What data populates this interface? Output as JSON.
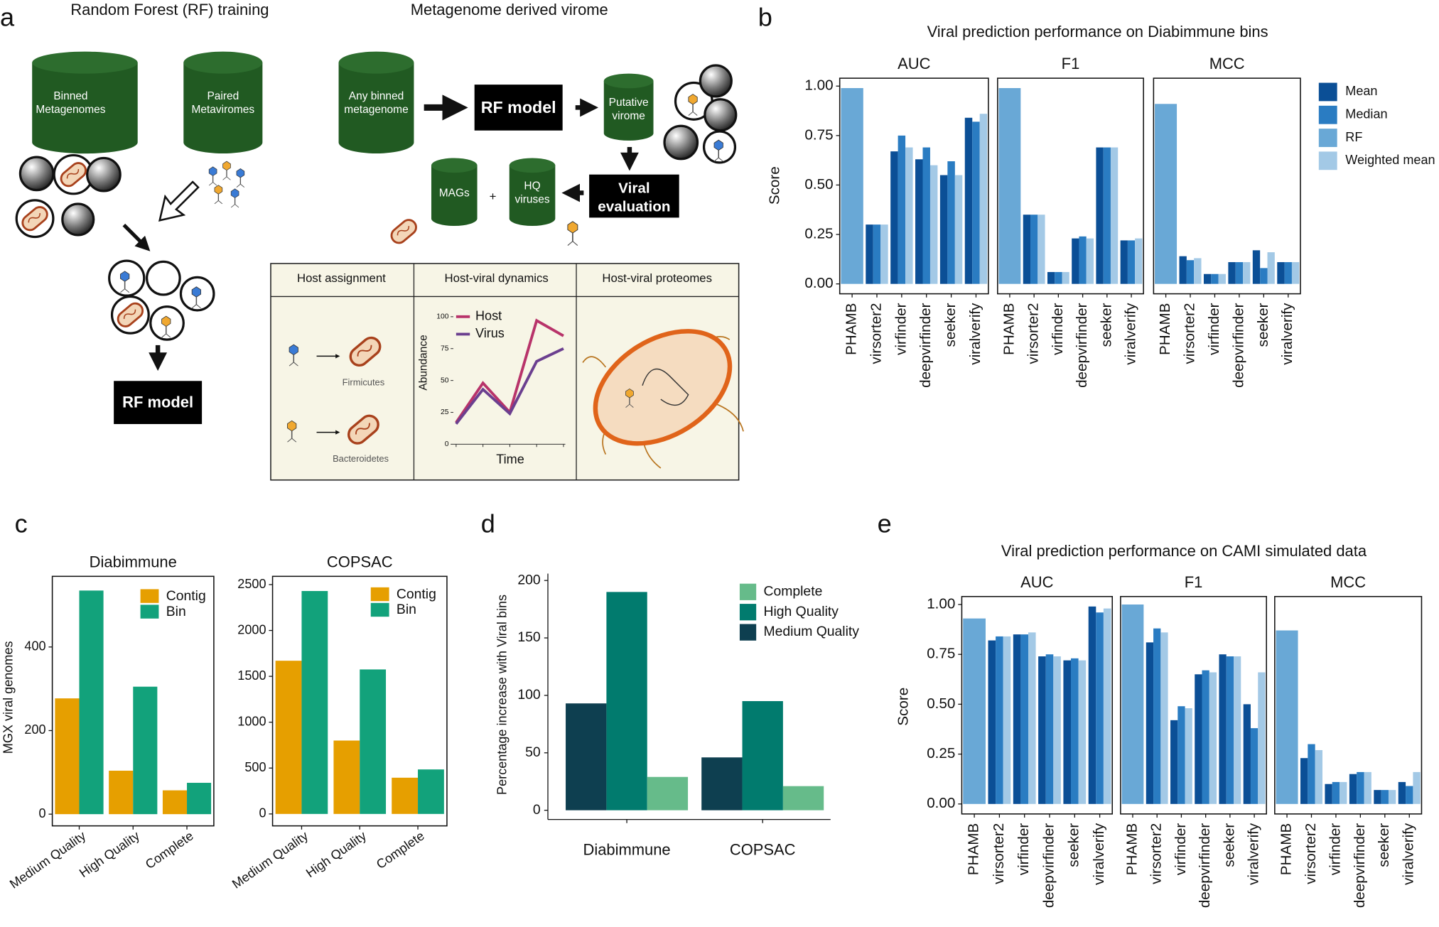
{
  "panel_labels": [
    "a",
    "b",
    "c",
    "d",
    "e"
  ],
  "diagram": {
    "training_title": "Random Forest (RF) training",
    "virome_title": "Metagenome derived virome",
    "binned_metagenomes": [
      "Binned",
      "Metagenomes"
    ],
    "paired_metaviromes": [
      "Paired",
      "Metaviromes"
    ],
    "any_binned": [
      "Any binned",
      "metagenome"
    ],
    "rf_model_top": "RF model",
    "rf_model_bottom": "RF model",
    "putative_virome": [
      "Putative",
      "virome"
    ],
    "mags": "MAGs",
    "plus": "+",
    "hq_viruses": [
      "HQ",
      "viruses"
    ],
    "viral_evaluation": [
      "Viral",
      "evaluation"
    ],
    "table_headers": [
      "Host assignment",
      "Host-viral dynamics",
      "Host-viral proteomes"
    ],
    "hosts": [
      "Firmicutes",
      "Bacteroidetes"
    ]
  },
  "chart_data": [
    {
      "type": "facet_bar",
      "title": "Viral prediction performance on Diabimmune bins",
      "ylabel": "Score",
      "categories": [
        "PHAMB",
        "virsorter2",
        "virfinder",
        "deepvirfinder",
        "seeker",
        "viralverify"
      ],
      "series": [
        {
          "name": "Mean",
          "color": "#0b4f96"
        },
        {
          "name": "Median",
          "color": "#2a7cc2"
        },
        {
          "name": "RF",
          "color": "#69a8d6"
        },
        {
          "name": "Weighted mean",
          "color": "#a3c9e6"
        }
      ],
      "legend": "right",
      "ylim": [
        -0.05,
        1.04
      ],
      "yticks": [
        {
          "value": 0,
          "label": "0.00"
        },
        {
          "value": 0.25,
          "label": "0.25"
        },
        {
          "value": 0.5,
          "label": "0.50"
        },
        {
          "value": 0.75,
          "label": "0.75"
        },
        {
          "value": 1,
          "label": "1.00"
        }
      ],
      "facets": [
        {
          "title": "AUC",
          "values": [
            [
              null,
              0.3,
              0.67,
              0.63,
              0.55,
              0.84
            ],
            [
              null,
              0.3,
              0.75,
              0.69,
              0.62,
              0.82
            ],
            [
              0.99,
              null,
              null,
              null,
              null,
              null
            ],
            [
              null,
              0.3,
              0.69,
              0.6,
              0.55,
              0.86
            ]
          ]
        },
        {
          "title": "F1",
          "values": [
            [
              null,
              0.35,
              0.06,
              0.23,
              0.69,
              0.22
            ],
            [
              null,
              0.35,
              0.06,
              0.24,
              0.69,
              0.22
            ],
            [
              0.99,
              null,
              null,
              null,
              null,
              null
            ],
            [
              null,
              0.35,
              0.06,
              0.23,
              0.69,
              0.23
            ]
          ]
        },
        {
          "title": "MCC",
          "values": [
            [
              null,
              0.14,
              0.05,
              0.11,
              0.17,
              0.11
            ],
            [
              null,
              0.12,
              0.05,
              0.11,
              0.08,
              0.11
            ],
            [
              0.91,
              null,
              null,
              null,
              null,
              null
            ],
            [
              null,
              0.13,
              0.05,
              0.11,
              0.16,
              0.11
            ]
          ]
        }
      ]
    },
    {
      "type": "facet_bar",
      "ylabel": "MGX viral genomes",
      "categories": [
        "Medium Quality",
        "High Quality",
        "Complete"
      ],
      "series": [
        {
          "name": "Contig",
          "color": "#e69f00"
        },
        {
          "name": "Bin",
          "color": "#12a27b"
        }
      ],
      "legend": "inside",
      "facets": [
        {
          "title": "Diabimmune",
          "ylim": [
            -28,
            569
          ],
          "yticks": [
            0,
            200,
            400
          ],
          "values": [
            [
              277,
              104,
              57
            ],
            [
              535,
              305,
              75
            ]
          ]
        },
        {
          "title": "COPSAC",
          "ylim": [
            -130,
            2590
          ],
          "yticks": [
            0,
            500,
            1000,
            1500,
            2000,
            2500
          ],
          "values": [
            [
              1670,
              800,
              395
            ],
            [
              2430,
              1575,
              485
            ]
          ]
        }
      ]
    },
    {
      "type": "bar",
      "ylabel": "Percentage increase with Viral bins",
      "categories": [
        "Diabimmune",
        "COPSAC"
      ],
      "series": [
        {
          "name": "Medium Quality",
          "color": "#0e3f50",
          "values": [
            93,
            46
          ]
        },
        {
          "name": "High Quality",
          "color": "#017b6e",
          "values": [
            190,
            95
          ]
        },
        {
          "name": "Complete",
          "color": "#66bb8a",
          "values": [
            29,
            21
          ]
        }
      ],
      "ylim": [
        -8,
        206
      ],
      "yticks": [
        0,
        50,
        100,
        150,
        200
      ]
    },
    {
      "type": "facet_bar",
      "title": "Viral prediction performance on CAMI simulated data",
      "ylabel": "Score",
      "categories": [
        "PHAMB",
        "virsorter2",
        "virfinder",
        "deepvirfinder",
        "seeker",
        "viralverify"
      ],
      "series": [
        {
          "color": "#0b4f96"
        },
        {
          "color": "#2a7cc2"
        },
        {
          "color": "#69a8d6"
        },
        {
          "color": "#a3c9e6"
        }
      ],
      "ylim": [
        -0.05,
        1.04
      ],
      "yticks": [
        {
          "value": 0,
          "label": "0.00"
        },
        {
          "value": 0.25,
          "label": "0.25"
        },
        {
          "value": 0.5,
          "label": "0.50"
        },
        {
          "value": 0.75,
          "label": "0.75"
        },
        {
          "value": 1,
          "label": "1.00"
        }
      ],
      "facets": [
        {
          "title": "AUC",
          "values": [
            [
              null,
              0.82,
              0.85,
              0.74,
              0.72,
              0.99
            ],
            [
              null,
              0.84,
              0.85,
              0.75,
              0.73,
              0.96
            ],
            [
              0.93,
              null,
              null,
              null,
              null,
              null
            ],
            [
              null,
              0.84,
              0.86,
              0.74,
              0.72,
              0.98
            ]
          ]
        },
        {
          "title": "F1",
          "values": [
            [
              null,
              0.81,
              0.42,
              0.65,
              0.75,
              0.5
            ],
            [
              null,
              0.88,
              0.49,
              0.67,
              0.74,
              0.38
            ],
            [
              1.0,
              null,
              null,
              null,
              null,
              null
            ],
            [
              null,
              0.86,
              0.48,
              0.66,
              0.74,
              0.66
            ]
          ]
        },
        {
          "title": "MCC",
          "values": [
            [
              null,
              0.23,
              0.1,
              0.15,
              0.07,
              0.11
            ],
            [
              null,
              0.3,
              0.11,
              0.16,
              0.07,
              0.09
            ],
            [
              0.87,
              null,
              null,
              null,
              null,
              null
            ],
            [
              null,
              0.27,
              0.11,
              0.16,
              0.07,
              0.16
            ]
          ]
        }
      ]
    },
    {
      "type": "line",
      "xlabel": "Time",
      "ylabel": "Abundance",
      "categories": [
        null,
        null,
        null,
        null,
        null
      ],
      "series": [
        {
          "name": "Host",
          "color": "#b8336a",
          "values": [
            17,
            48,
            25,
            97,
            85
          ]
        },
        {
          "name": "Virus",
          "color": "#6b3f8f",
          "values": [
            16,
            43,
            24,
            65,
            75
          ]
        }
      ],
      "ylim": [
        0,
        100
      ],
      "yticks": [
        0,
        25,
        50,
        75,
        100
      ]
    }
  ]
}
